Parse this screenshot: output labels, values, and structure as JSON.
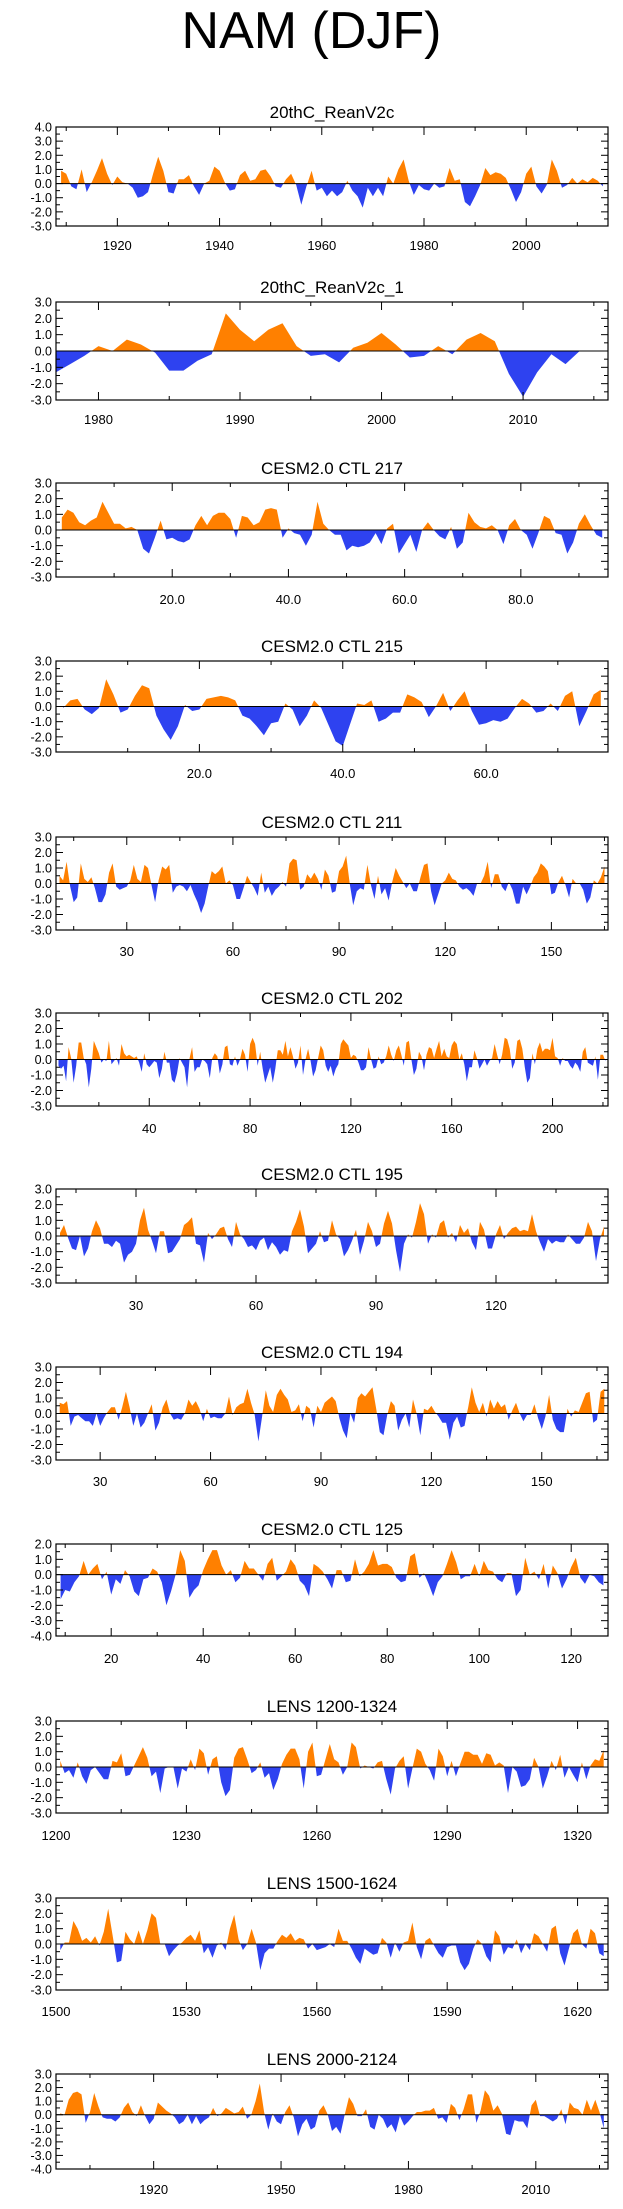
{
  "title": "NAM (DJF)",
  "colors": {
    "positive": "#FF8000",
    "negative": "#2E42F0",
    "axis": "#000000"
  },
  "chart_data": [
    {
      "type": "area",
      "title": "20thC_ReanV2c",
      "xlim": [
        1908,
        2016
      ],
      "ylim": [
        -3.0,
        4.0
      ],
      "yticks": [
        4.0,
        3.0,
        2.0,
        1.0,
        0.0,
        -1.0,
        -2.0,
        -3.0
      ],
      "xticks": [
        1920,
        1940,
        1960,
        1980,
        2000
      ],
      "xtick_labels": [
        "1920",
        "1940",
        "1960",
        "1980",
        "2000"
      ],
      "noise": [
        0.55,
        0.45,
        0.85
      ],
      "x": [],
      "values": []
    },
    {
      "type": "area",
      "title": "20thC_ReanV2c_1",
      "xlim": [
        1977,
        2016
      ],
      "ylim": [
        -3.0,
        3.0
      ],
      "yticks": [
        3.0,
        2.0,
        1.0,
        0.0,
        -1.0,
        -2.0,
        -3.0
      ],
      "xticks": [
        1980,
        1990,
        2000,
        2010
      ],
      "xtick_labels": [
        "1980",
        "1990",
        "2000",
        "2010"
      ],
      "x": [
        1977,
        1978,
        1979,
        1980,
        1981,
        1982,
        1983,
        1984,
        1985,
        1986,
        1987,
        1988,
        1989,
        1990,
        1991,
        1992,
        1993,
        1994,
        1995,
        1996,
        1997,
        1998,
        1999,
        2000,
        2001,
        2002,
        2003,
        2004,
        2005,
        2006,
        2007,
        2008,
        2009,
        2010,
        2011,
        2012,
        2013,
        2014
      ],
      "values": [
        -1.3,
        -0.8,
        -0.3,
        0.3,
        0.0,
        0.7,
        0.4,
        -0.1,
        -1.2,
        -1.2,
        -0.6,
        -0.2,
        2.3,
        1.3,
        0.6,
        1.3,
        1.7,
        0.3,
        -0.3,
        -0.2,
        -0.7,
        0.2,
        0.5,
        1.1,
        0.4,
        -0.4,
        -0.3,
        0.3,
        -0.2,
        0.7,
        1.1,
        0.6,
        -1.4,
        -2.8,
        -1.3,
        -0.2,
        -0.8,
        0.0
      ]
    },
    {
      "type": "area",
      "title": "CESM2.0 CTL 217",
      "xlim": [
        0,
        95
      ],
      "ylim": [
        -3.0,
        3.0
      ],
      "yticks": [
        3.0,
        2.0,
        1.0,
        0.0,
        -1.0,
        -2.0,
        -3.0
      ],
      "xticks": [
        20,
        40,
        60,
        80
      ],
      "xtick_labels": [
        "20.0",
        "40.0",
        "60.0",
        "80.0"
      ],
      "noise": [
        0.6,
        0.5,
        1.0
      ],
      "x": [],
      "values": []
    },
    {
      "type": "area",
      "title": "CESM2.0 CTL 215",
      "xlim": [
        0,
        77
      ],
      "ylim": [
        -3.0,
        3.0
      ],
      "yticks": [
        3.0,
        2.0,
        1.0,
        0.0,
        -1.0,
        -2.0,
        -3.0
      ],
      "xticks": [
        20,
        40,
        60
      ],
      "xtick_labels": [
        "20.0",
        "40.0",
        "60.0"
      ],
      "noise": [
        0.6,
        0.5,
        1.0
      ],
      "x": [],
      "values": []
    },
    {
      "type": "area",
      "title": "CESM2.0 CTL 211",
      "xlim": [
        10,
        166
      ],
      "ylim": [
        -3.0,
        3.0
      ],
      "yticks": [
        3.0,
        2.0,
        1.0,
        0.0,
        -1.0,
        -2.0,
        -3.0
      ],
      "xticks": [
        30,
        60,
        90,
        120,
        150
      ],
      "xtick_labels": [
        "30",
        "60",
        "90",
        "120",
        "150"
      ],
      "noise": [
        0.55,
        0.5,
        0.95
      ],
      "x": [],
      "values": []
    },
    {
      "type": "area",
      "title": "CESM2.0 CTL 202",
      "xlim": [
        3,
        222
      ],
      "ylim": [
        -3.0,
        3.0
      ],
      "yticks": [
        3.0,
        2.0,
        1.0,
        0.0,
        -1.0,
        -2.0,
        -3.0
      ],
      "xticks": [
        40,
        80,
        120,
        160,
        200
      ],
      "xtick_labels": [
        "40",
        "80",
        "120",
        "160",
        "200"
      ],
      "noise": [
        0.5,
        0.5,
        0.9
      ],
      "x": [],
      "values": []
    },
    {
      "type": "area",
      "title": "CESM2.0 CTL 195",
      "xlim": [
        10,
        148
      ],
      "ylim": [
        -3.0,
        3.0
      ],
      "yticks": [
        3.0,
        2.0,
        1.0,
        0.0,
        -1.0,
        -2.0,
        -3.0
      ],
      "xticks": [
        30,
        60,
        90,
        120
      ],
      "xtick_labels": [
        "30",
        "60",
        "90",
        "120"
      ],
      "noise": [
        0.55,
        0.5,
        0.95
      ],
      "x": [],
      "values": []
    },
    {
      "type": "area",
      "title": "CESM2.0 CTL 194",
      "xlim": [
        18,
        168
      ],
      "ylim": [
        -3.0,
        3.0
      ],
      "yticks": [
        3.0,
        2.0,
        1.0,
        0.0,
        -1.0,
        -2.0,
        -3.0
      ],
      "xticks": [
        30,
        60,
        90,
        120,
        150
      ],
      "xtick_labels": [
        "30",
        "60",
        "90",
        "120",
        "150"
      ],
      "noise": [
        0.55,
        0.5,
        0.95
      ],
      "x": [],
      "values": []
    },
    {
      "type": "area",
      "title": "CESM2.0 CTL 125",
      "xlim": [
        8,
        128
      ],
      "ylim": [
        -4.0,
        2.0
      ],
      "yticks": [
        2.0,
        1.0,
        0.0,
        -1.0,
        -2.0,
        -3.0,
        -4.0
      ],
      "xticks": [
        20,
        40,
        60,
        80,
        100,
        120
      ],
      "xtick_labels": [
        "20",
        "40",
        "60",
        "80",
        "100",
        "120"
      ],
      "noise": [
        0.5,
        0.5,
        1.0
      ],
      "x": [],
      "values": []
    },
    {
      "type": "area",
      "title": "LENS 1200-1324",
      "xlim": [
        1200,
        1327
      ],
      "ylim": [
        -3.0,
        3.0
      ],
      "yticks": [
        3.0,
        2.0,
        1.0,
        0.0,
        -1.0,
        -2.0,
        -3.0
      ],
      "xticks": [
        1200,
        1230,
        1260,
        1290,
        1320
      ],
      "xtick_labels": [
        "1200",
        "1230",
        "1260",
        "1290",
        "1320"
      ],
      "noise": [
        0.55,
        0.5,
        0.95
      ],
      "x": [],
      "values": []
    },
    {
      "type": "area",
      "title": "LENS 1500-1624",
      "xlim": [
        1500,
        1627
      ],
      "ylim": [
        -3.0,
        3.0
      ],
      "yticks": [
        3.0,
        2.0,
        1.0,
        0.0,
        -1.0,
        -2.0,
        -3.0
      ],
      "xticks": [
        1500,
        1530,
        1560,
        1590,
        1620
      ],
      "xtick_labels": [
        "1500",
        "1530",
        "1560",
        "1590",
        "1620"
      ],
      "noise": [
        0.55,
        0.5,
        0.95
      ],
      "x": [],
      "values": []
    },
    {
      "type": "area",
      "title": "LENS 2000-2124",
      "xlim": [
        1897,
        2027
      ],
      "ylim": [
        -4.0,
        3.0
      ],
      "yticks": [
        3.0,
        2.0,
        1.0,
        0.0,
        -1.0,
        -2.0,
        -3.0,
        -4.0
      ],
      "xticks": [
        1920,
        1950,
        1980,
        2010
      ],
      "xtick_labels": [
        "1920",
        "1950",
        "1980",
        "2010"
      ],
      "noise": [
        0.55,
        0.5,
        1.0
      ],
      "x": [],
      "values": []
    }
  ]
}
